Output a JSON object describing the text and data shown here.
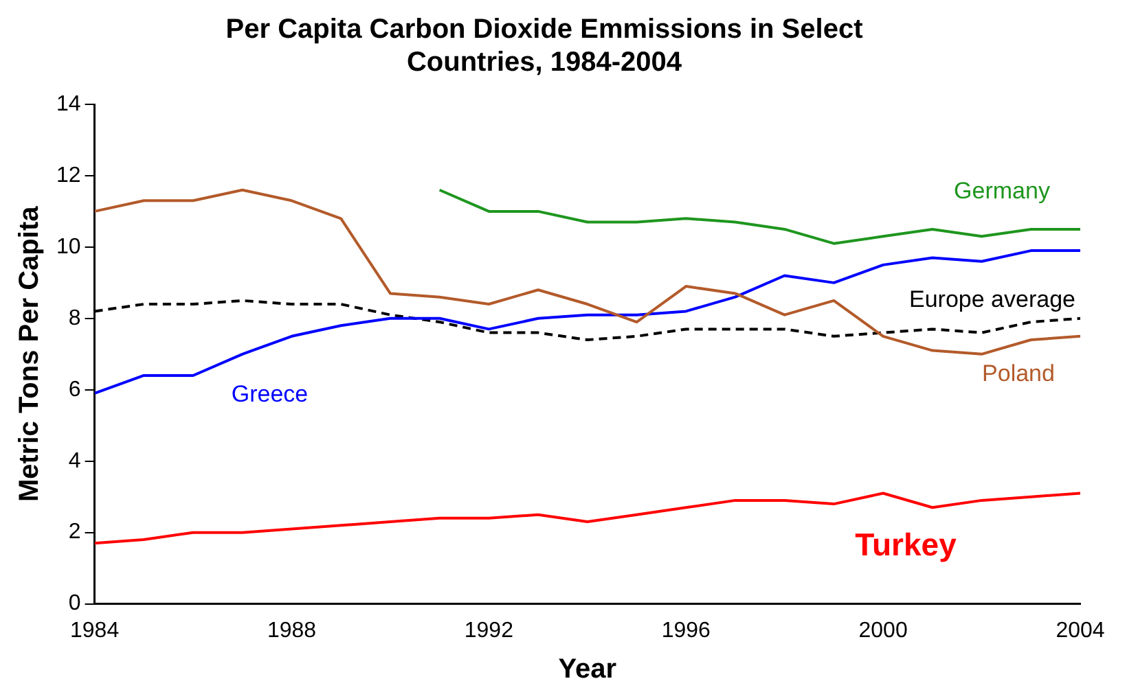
{
  "chart_data": {
    "type": "line",
    "title": "Per Capita Carbon Dioxide Emmissions in Select Countries, 1984-2004",
    "xlabel": "Year",
    "ylabel": "Metric Tons Per Capita",
    "x": [
      1984,
      1985,
      1986,
      1987,
      1988,
      1989,
      1990,
      1991,
      1992,
      1993,
      1994,
      1995,
      1996,
      1997,
      1998,
      1999,
      2000,
      2001,
      2002,
      2003,
      2004
    ],
    "series": [
      {
        "name": "Poland",
        "color": "#b35a2a",
        "values": [
          11.0,
          11.3,
          11.3,
          11.6,
          11.3,
          10.8,
          8.7,
          8.6,
          8.4,
          8.8,
          8.4,
          7.9,
          8.9,
          8.7,
          8.1,
          8.5,
          7.5,
          7.1,
          7.0,
          7.4,
          7.5
        ]
      },
      {
        "name": "Germany",
        "color": "#1e961e",
        "values": [
          null,
          null,
          null,
          null,
          null,
          null,
          null,
          11.6,
          11.0,
          11.0,
          10.7,
          10.7,
          10.8,
          10.7,
          10.5,
          10.1,
          10.3,
          10.5,
          10.3,
          10.5,
          10.5
        ]
      },
      {
        "name": "Greece",
        "color": "#0000ff",
        "values": [
          5.9,
          6.4,
          6.4,
          7.0,
          7.5,
          7.8,
          8.0,
          8.0,
          7.7,
          8.0,
          8.1,
          8.1,
          8.2,
          8.6,
          9.2,
          9.0,
          9.5,
          9.7,
          9.6,
          9.9,
          9.9
        ]
      },
      {
        "name": "Europe average",
        "color": "#000000",
        "line_style": "dashed",
        "values": [
          8.2,
          8.4,
          8.4,
          8.5,
          8.4,
          8.4,
          8.1,
          7.9,
          7.6,
          7.6,
          7.4,
          7.5,
          7.7,
          7.7,
          7.7,
          7.5,
          7.6,
          7.7,
          7.6,
          7.9,
          8.0
        ]
      },
      {
        "name": "Turkey",
        "color": "#ff0000",
        "values": [
          1.7,
          1.8,
          2.0,
          2.0,
          2.1,
          2.2,
          2.3,
          2.4,
          2.4,
          2.5,
          2.3,
          2.5,
          2.7,
          2.9,
          2.9,
          2.8,
          3.1,
          2.7,
          2.9,
          3.0,
          3.1
        ]
      }
    ],
    "xlim": [
      1984,
      2004
    ],
    "xticks": [
      1984,
      1988,
      1992,
      1996,
      2000,
      2004
    ],
    "ylim": [
      0,
      14
    ],
    "yticks": [
      0,
      2,
      4,
      6,
      8,
      10,
      12,
      14
    ],
    "grid": false,
    "legend": false,
    "marker": "none",
    "line_style": "solid"
  }
}
